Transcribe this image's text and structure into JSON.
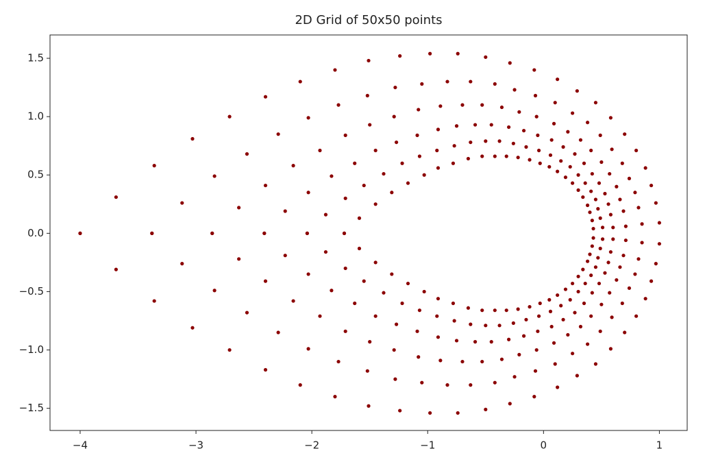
{
  "chart_data": {
    "type": "scatter",
    "title": "2D Grid of 50x50 points",
    "color": "#8b0000",
    "xlim": [
      -4.26,
      1.24
    ],
    "ylim": [
      -1.69,
      1.7
    ],
    "xticks": [
      {
        "value": -4,
        "label": "−4"
      },
      {
        "value": -3,
        "label": "−3"
      },
      {
        "value": -2,
        "label": "−2"
      },
      {
        "value": -1,
        "label": "−1"
      },
      0,
      1
    ],
    "yticks": [
      {
        "value": -1.5,
        "label": "−1.5"
      },
      {
        "value": -1.0,
        "label": "−1.0"
      },
      {
        "value": -0.5,
        "label": "−0.5"
      },
      {
        "value": 0,
        "label": "0.0"
      },
      0.5,
      {
        "value": 1.0,
        "label": "1.0"
      },
      1.5
    ],
    "x": [
      -4,
      -3.69,
      -3.36,
      -3.03,
      -2.71,
      -2.4,
      -2.1,
      -1.8,
      -1.51,
      -1.24,
      -0.98,
      -0.74,
      -0.5,
      -0.29,
      -0.08,
      0.12,
      0.29,
      0.45,
      0.58,
      0.7,
      0.8,
      0.88,
      0.93,
      0.97,
      1.0,
      1.0,
      0.97,
      0.93,
      0.88,
      0.8,
      0.7,
      0.58,
      0.45,
      0.29,
      0.12,
      -0.08,
      -0.29,
      -0.5,
      -0.74,
      -0.98,
      -1.24,
      -1.51,
      -1.8,
      -2.1,
      -2.4,
      -2.71,
      -3.03,
      -3.36,
      -3.69,
      -4,
      -3.38,
      -3.12,
      -2.84,
      -2.56,
      -2.29,
      -2.03,
      -1.77,
      -1.52,
      -1.28,
      -1.05,
      -0.83,
      -0.63,
      -0.42,
      -0.25,
      -0.07,
      0.1,
      0.25,
      0.38,
      0.49,
      0.59,
      0.68,
      0.74,
      0.79,
      0.82,
      0.85,
      0.85,
      0.82,
      0.79,
      0.74,
      0.68,
      0.59,
      0.49,
      0.38,
      0.25,
      0.1,
      -0.07,
      -0.25,
      -0.42,
      -0.63,
      -0.83,
      -1.05,
      -1.28,
      -1.52,
      -1.77,
      -2.03,
      -2.29,
      -2.56,
      -2.84,
      -3.12,
      -3.38,
      -2.86,
      -2.63,
      -2.4,
      -2.16,
      -1.93,
      -1.71,
      -1.5,
      -1.29,
      -1.08,
      -0.89,
      -0.7,
      -0.53,
      -0.36,
      -0.21,
      -0.06,
      0.09,
      0.21,
      0.32,
      0.41,
      0.5,
      0.57,
      0.63,
      0.66,
      0.69,
      0.71,
      0.71,
      0.69,
      0.66,
      0.63,
      0.57,
      0.5,
      0.41,
      0.32,
      0.21,
      0.09,
      -0.06,
      -0.21,
      -0.36,
      -0.53,
      -0.7,
      -0.89,
      -1.08,
      -1.29,
      -1.5,
      -1.71,
      -1.93,
      -2.16,
      -2.4,
      -2.63,
      -2.86,
      -2.41,
      -2.23,
      -2.03,
      -1.83,
      -1.63,
      -1.45,
      -1.27,
      -1.09,
      -0.91,
      -0.75,
      -0.59,
      -0.45,
      -0.3,
      -0.17,
      -0.05,
      0.07,
      0.17,
      0.27,
      0.35,
      0.42,
      0.48,
      0.53,
      0.56,
      0.58,
      0.6,
      0.6,
      0.58,
      0.56,
      0.53,
      0.48,
      0.42,
      0.35,
      0.27,
      0.17,
      0.07,
      -0.05,
      -0.17,
      -0.3,
      -0.45,
      -0.59,
      -0.75,
      -0.91,
      -1.09,
      -1.27,
      -1.45,
      -1.63,
      -1.83,
      -2.03,
      -2.23,
      -2.41,
      -2.04,
      -1.88,
      -1.71,
      -1.55,
      -1.38,
      -1.22,
      -1.07,
      -0.92,
      -0.77,
      -0.63,
      -0.5,
      -0.38,
      -0.26,
      -0.15,
      -0.04,
      0.06,
      0.15,
      0.23,
      0.3,
      0.36,
      0.41,
      0.45,
      0.47,
      0.49,
      0.51,
      0.51,
      0.49,
      0.47,
      0.45,
      0.41,
      0.36,
      0.3,
      0.23,
      0.15,
      0.06,
      -0.04,
      -0.15,
      -0.26,
      -0.38,
      -0.5,
      -0.63,
      -0.77,
      -0.92,
      -1.07,
      -1.22,
      -1.38,
      -1.55,
      -1.71,
      -1.88,
      -2.04,
      -1.72,
      -1.59,
      -1.45,
      -1.31,
      -1.17,
      -1.03,
      -0.91,
      -0.78,
      -0.65,
      -0.53,
      -0.42,
      -0.32,
      -0.22,
      -0.12,
      -0.03,
      0.05,
      0.12,
      0.19,
      0.25,
      0.3,
      0.34,
      0.38,
      0.4,
      0.42,
      0.43,
      0.43,
      0.42,
      0.4,
      0.38,
      0.34,
      0.3,
      0.25,
      0.19,
      0.12,
      0.05,
      -0.03,
      -0.12,
      -0.22,
      -0.32,
      -0.42,
      -0.53,
      -0.65,
      -0.78,
      -0.91,
      -1.03,
      -1.17,
      -1.31,
      -1.45,
      -1.59,
      -1.72
    ],
    "y": [
      0,
      0.31,
      0.58,
      0.81,
      1.0,
      1.17,
      1.3,
      1.4,
      1.48,
      1.52,
      1.54,
      1.54,
      1.51,
      1.46,
      1.4,
      1.32,
      1.22,
      1.12,
      0.99,
      0.85,
      0.71,
      0.56,
      0.41,
      0.26,
      0.09,
      -0.09,
      -0.26,
      -0.41,
      -0.56,
      -0.71,
      -0.85,
      -0.99,
      -1.12,
      -1.22,
      -1.32,
      -1.4,
      -1.46,
      -1.51,
      -1.54,
      -1.54,
      -1.52,
      -1.48,
      -1.4,
      -1.3,
      -1.17,
      -1.0,
      -0.81,
      -0.58,
      -0.31,
      0,
      0,
      0.26,
      0.49,
      0.68,
      0.85,
      0.99,
      1.1,
      1.18,
      1.25,
      1.28,
      1.3,
      1.3,
      1.28,
      1.23,
      1.18,
      1.12,
      1.03,
      0.95,
      0.84,
      0.72,
      0.6,
      0.47,
      0.35,
      0.22,
      0.08,
      -0.08,
      -0.22,
      -0.35,
      -0.47,
      -0.6,
      -0.72,
      -0.84,
      -0.95,
      -1.03,
      -1.12,
      -1.18,
      -1.23,
      -1.28,
      -1.3,
      -1.3,
      -1.28,
      -1.25,
      -1.18,
      -1.1,
      -0.99,
      -0.85,
      -0.68,
      -0.49,
      -0.26,
      0,
      0,
      0.22,
      0.41,
      0.58,
      0.71,
      0.84,
      0.93,
      1.0,
      1.06,
      1.09,
      1.1,
      1.1,
      1.08,
      1.04,
      1.0,
      0.94,
      0.87,
      0.8,
      0.71,
      0.61,
      0.51,
      0.4,
      0.29,
      0.19,
      0.06,
      -0.06,
      -0.19,
      -0.29,
      -0.4,
      -0.51,
      -0.61,
      -0.71,
      -0.8,
      -0.87,
      -0.94,
      -1.0,
      -1.04,
      -1.08,
      -1.1,
      -1.1,
      -1.09,
      -1.06,
      -1.0,
      -0.93,
      -0.84,
      -0.71,
      -0.58,
      -0.41,
      -0.22,
      0,
      0,
      0.19,
      0.35,
      0.49,
      0.6,
      0.71,
      0.78,
      0.84,
      0.89,
      0.92,
      0.93,
      0.93,
      0.91,
      0.88,
      0.84,
      0.8,
      0.74,
      0.68,
      0.6,
      0.51,
      0.43,
      0.34,
      0.25,
      0.16,
      0.05,
      -0.05,
      -0.16,
      -0.25,
      -0.34,
      -0.43,
      -0.51,
      -0.6,
      -0.68,
      -0.74,
      -0.8,
      -0.84,
      -0.88,
      -0.91,
      -0.93,
      -0.93,
      -0.92,
      -0.89,
      -0.84,
      -0.78,
      -0.71,
      -0.6,
      -0.49,
      -0.35,
      -0.19,
      0,
      0,
      0.16,
      0.3,
      0.41,
      0.51,
      0.6,
      0.66,
      0.71,
      0.75,
      0.78,
      0.79,
      0.79,
      0.77,
      0.74,
      0.71,
      0.67,
      0.62,
      0.57,
      0.5,
      0.43,
      0.36,
      0.29,
      0.21,
      0.13,
      0.05,
      -0.05,
      -0.13,
      -0.21,
      -0.29,
      -0.36,
      -0.43,
      -0.5,
      -0.57,
      -0.62,
      -0.67,
      -0.71,
      -0.74,
      -0.77,
      -0.79,
      -0.79,
      -0.78,
      -0.75,
      -0.71,
      -0.66,
      -0.6,
      -0.51,
      -0.41,
      -0.3,
      -0.16,
      0,
      0,
      0.13,
      0.25,
      0.35,
      0.43,
      0.5,
      0.56,
      0.6,
      0.64,
      0.66,
      0.66,
      0.66,
      0.65,
      0.63,
      0.6,
      0.57,
      0.53,
      0.48,
      0.43,
      0.37,
      0.31,
      0.24,
      0.18,
      0.11,
      0.04,
      -0.04,
      -0.11,
      -0.18,
      -0.24,
      -0.31,
      -0.37,
      -0.43,
      -0.48,
      -0.53,
      -0.57,
      -0.6,
      -0.63,
      -0.65,
      -0.66,
      -0.66,
      -0.66,
      -0.64,
      -0.6,
      -0.56,
      -0.5,
      -0.43,
      -0.35,
      -0.25,
      -0.13,
      0
    ]
  }
}
